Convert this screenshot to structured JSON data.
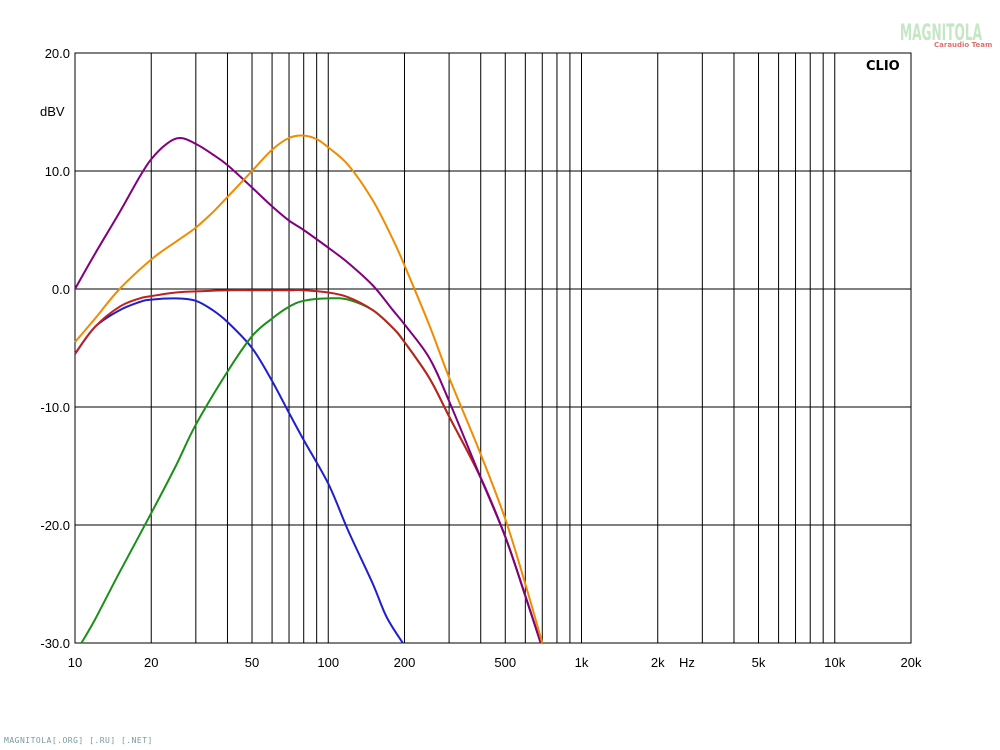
{
  "chart_data": {
    "type": "line",
    "title": "",
    "xlabel": "Hz",
    "ylabel": "dBV",
    "x_scale": "log",
    "xlim": [
      10,
      20000
    ],
    "ylim": [
      -30,
      20
    ],
    "grid": true,
    "brand_label": "CLIO",
    "x_ticks": [
      {
        "value": 10,
        "label": "10"
      },
      {
        "value": 20,
        "label": "20"
      },
      {
        "value": 50,
        "label": "50"
      },
      {
        "value": 100,
        "label": "100"
      },
      {
        "value": 200,
        "label": "200"
      },
      {
        "value": 500,
        "label": "500"
      },
      {
        "value": 1000,
        "label": "1k"
      },
      {
        "value": 2000,
        "label": "2k"
      },
      {
        "value": 5000,
        "label": "5k"
      },
      {
        "value": 10000,
        "label": "10k"
      },
      {
        "value": 20000,
        "label": "20k"
      }
    ],
    "y_ticks": [
      {
        "value": 20,
        "label": "20.0"
      },
      {
        "value": 10,
        "label": "10.0"
      },
      {
        "value": 0,
        "label": "0.0"
      },
      {
        "value": -10,
        "label": "-10.0"
      },
      {
        "value": -20,
        "label": "-20.0"
      },
      {
        "value": -30,
        "label": "-30.0"
      }
    ],
    "series": [
      {
        "color": "#1f1fd0",
        "points": [
          [
            10,
            -5.5
          ],
          [
            12,
            -3.2
          ],
          [
            15,
            -1.8
          ],
          [
            18,
            -1.1
          ],
          [
            20,
            -0.9
          ],
          [
            25,
            -0.8
          ],
          [
            30,
            -1.0
          ],
          [
            35,
            -1.8
          ],
          [
            40,
            -2.8
          ],
          [
            50,
            -5.0
          ],
          [
            60,
            -7.8
          ],
          [
            70,
            -10.5
          ],
          [
            80,
            -12.8
          ],
          [
            100,
            -16.5
          ],
          [
            120,
            -20.5
          ],
          [
            150,
            -25.0
          ],
          [
            170,
            -27.8
          ],
          [
            197,
            -30
          ]
        ]
      },
      {
        "color": "#1a8f1a",
        "points": [
          [
            10.6,
            -30
          ],
          [
            12,
            -28.0
          ],
          [
            15,
            -24.0
          ],
          [
            20,
            -19.0
          ],
          [
            25,
            -15.0
          ],
          [
            30,
            -11.5
          ],
          [
            40,
            -7.0
          ],
          [
            50,
            -4.0
          ],
          [
            60,
            -2.5
          ],
          [
            70,
            -1.5
          ],
          [
            80,
            -1.0
          ],
          [
            100,
            -0.8
          ],
          [
            120,
            -0.9
          ],
          [
            150,
            -1.8
          ],
          [
            180,
            -3.3
          ],
          [
            200,
            -4.5
          ],
          [
            250,
            -7.5
          ],
          [
            300,
            -10.8
          ],
          [
            400,
            -16.0
          ],
          [
            500,
            -21.0
          ],
          [
            600,
            -26.0
          ],
          [
            690,
            -30
          ]
        ]
      },
      {
        "color": "#c02020",
        "points": [
          [
            10,
            -5.5
          ],
          [
            12,
            -3.2
          ],
          [
            15,
            -1.5
          ],
          [
            18,
            -0.8
          ],
          [
            20,
            -0.6
          ],
          [
            25,
            -0.3
          ],
          [
            30,
            -0.2
          ],
          [
            40,
            -0.1
          ],
          [
            50,
            -0.1
          ],
          [
            60,
            -0.1
          ],
          [
            70,
            -0.1
          ],
          [
            80,
            -0.1
          ],
          [
            100,
            -0.3
          ],
          [
            120,
            -0.7
          ],
          [
            150,
            -1.8
          ],
          [
            180,
            -3.3
          ],
          [
            200,
            -4.5
          ],
          [
            250,
            -7.5
          ],
          [
            300,
            -10.8
          ],
          [
            400,
            -16.0
          ],
          [
            500,
            -21.0
          ],
          [
            600,
            -26.0
          ],
          [
            690,
            -30
          ]
        ]
      },
      {
        "color": "#800080",
        "points": [
          [
            10,
            0
          ],
          [
            12,
            3.0
          ],
          [
            15,
            6.5
          ],
          [
            18,
            9.5
          ],
          [
            20,
            11.0
          ],
          [
            23,
            12.3
          ],
          [
            26,
            12.8
          ],
          [
            30,
            12.3
          ],
          [
            35,
            11.4
          ],
          [
            40,
            10.5
          ],
          [
            50,
            8.6
          ],
          [
            60,
            7.0
          ],
          [
            70,
            5.8
          ],
          [
            80,
            5.0
          ],
          [
            100,
            3.5
          ],
          [
            120,
            2.2
          ],
          [
            150,
            0.3
          ],
          [
            180,
            -1.8
          ],
          [
            200,
            -3.0
          ],
          [
            250,
            -5.8
          ],
          [
            300,
            -9.5
          ],
          [
            400,
            -16.0
          ],
          [
            500,
            -21.0
          ],
          [
            600,
            -26.0
          ],
          [
            690,
            -30
          ]
        ]
      },
      {
        "color": "#f08c00",
        "points": [
          [
            10,
            -4.5
          ],
          [
            12,
            -2.5
          ],
          [
            15,
            0.0
          ],
          [
            20,
            2.5
          ],
          [
            25,
            4.0
          ],
          [
            30,
            5.2
          ],
          [
            35,
            6.5
          ],
          [
            40,
            7.8
          ],
          [
            50,
            10.0
          ],
          [
            60,
            11.8
          ],
          [
            70,
            12.8
          ],
          [
            80,
            13.0
          ],
          [
            90,
            12.7
          ],
          [
            100,
            12.0
          ],
          [
            120,
            10.5
          ],
          [
            150,
            7.5
          ],
          [
            180,
            4.2
          ],
          [
            200,
            2.0
          ],
          [
            250,
            -3.0
          ],
          [
            300,
            -7.5
          ],
          [
            400,
            -14.0
          ],
          [
            500,
            -19.5
          ],
          [
            600,
            -25.0
          ],
          [
            700,
            -30
          ]
        ]
      }
    ]
  },
  "watermark": {
    "logo_main": "MAGNITOLA",
    "logo_sub": "Caraudio Team",
    "footer": "MAGNITOLA[.ORG] [.RU] [.NET]"
  }
}
